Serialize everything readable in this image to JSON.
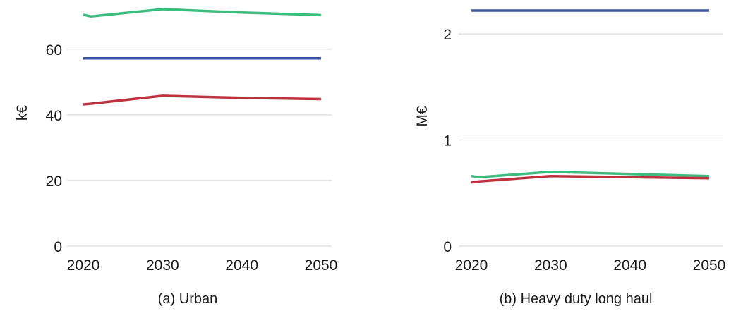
{
  "chart_data": [
    {
      "type": "line",
      "caption": "(a) Urban",
      "xlabel": "",
      "ylabel": "k€",
      "x": [
        2020,
        2021,
        2030,
        2040,
        2050
      ],
      "xticks": [
        "2020",
        "2030",
        "2040",
        "2050"
      ],
      "yticks": [
        "0",
        "20",
        "40",
        "60"
      ],
      "ylim": [
        0,
        75
      ],
      "grid": true,
      "series": [
        {
          "color": "#3a55a4",
          "values": [
            57.2,
            57.2,
            57.2,
            57.2,
            57.2
          ]
        },
        {
          "color": "#3dbd7d",
          "values": [
            70.5,
            70.0,
            72.2,
            71.2,
            70.4
          ]
        },
        {
          "color": "#c0313f",
          "values": [
            43.2,
            43.4,
            45.8,
            45.2,
            44.8
          ]
        }
      ]
    },
    {
      "type": "line",
      "caption": "(b) Heavy duty long haul",
      "xlabel": "",
      "ylabel": "M€",
      "x": [
        2020,
        2021,
        2030,
        2040,
        2050
      ],
      "xticks": [
        "2020",
        "2030",
        "2040",
        "2050"
      ],
      "yticks": [
        "0",
        "1",
        "2"
      ],
      "ylim": [
        0,
        2.32
      ],
      "grid": true,
      "series": [
        {
          "color": "#3a55a4",
          "values": [
            2.22,
            2.22,
            2.22,
            2.22,
            2.22
          ]
        },
        {
          "color": "#3dbd7d",
          "values": [
            0.66,
            0.65,
            0.7,
            0.68,
            0.66
          ]
        },
        {
          "color": "#c0313f",
          "values": [
            0.6,
            0.61,
            0.66,
            0.65,
            0.64
          ]
        }
      ]
    }
  ]
}
